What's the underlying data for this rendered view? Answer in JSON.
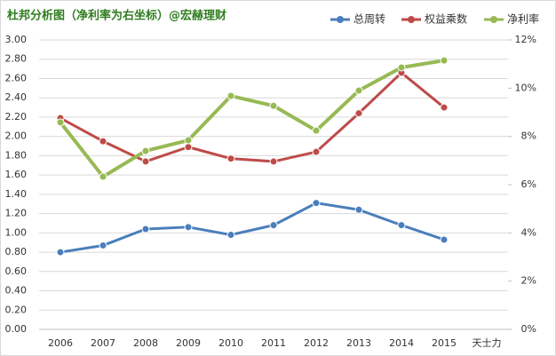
{
  "chart_data": {
    "type": "line",
    "title": "杜邦分析图（净利率为右坐标）@宏赫理财",
    "categories": [
      "2006",
      "2007",
      "2008",
      "2009",
      "2010",
      "2011",
      "2012",
      "2013",
      "2014",
      "2015",
      "天士力"
    ],
    "series": [
      {
        "name": "总周转",
        "color": "#4a7ebb",
        "values": [
          0.8,
          0.87,
          1.04,
          1.06,
          0.98,
          1.08,
          1.31,
          1.24,
          1.08,
          0.93,
          null
        ]
      },
      {
        "name": "权益乘数",
        "color": "#be4b48",
        "values": [
          2.19,
          1.95,
          1.74,
          1.89,
          1.77,
          1.74,
          1.84,
          2.24,
          2.66,
          2.3,
          null
        ]
      },
      {
        "name": "净利率",
        "color": "#98b954",
        "axis": "y2",
        "values": [
          8.58,
          6.33,
          7.4,
          7.84,
          9.68,
          9.27,
          8.24,
          9.9,
          10.86,
          11.15,
          null
        ]
      }
    ],
    "ylim": [
      0,
      3
    ],
    "yticks": [
      {
        "value": 0,
        "label": "0.00"
      },
      {
        "value": 0.2,
        "label": "0.20"
      },
      {
        "value": 0.4,
        "label": "0.40"
      },
      {
        "value": 0.6,
        "label": "0.60"
      },
      {
        "value": 0.8,
        "label": "0.80"
      },
      {
        "value": 1,
        "label": "1.00"
      },
      {
        "value": 1.2,
        "label": "1.20"
      },
      {
        "value": 1.4,
        "label": "1.40"
      },
      {
        "value": 1.6,
        "label": "1.60"
      },
      {
        "value": 1.8,
        "label": "1.80"
      },
      {
        "value": 2,
        "label": "2.00"
      },
      {
        "value": 2.2,
        "label": "2.20"
      },
      {
        "value": 2.4,
        "label": "2.40"
      },
      {
        "value": 2.6,
        "label": "2.60"
      },
      {
        "value": 2.8,
        "label": "2.80"
      },
      {
        "value": 3,
        "label": "3.00"
      }
    ],
    "y2lim": [
      0,
      12
    ],
    "y2ticks": [
      {
        "value": 0,
        "label": "0%"
      },
      {
        "value": 2,
        "label": "2%"
      },
      {
        "value": 4,
        "label": "4%"
      },
      {
        "value": 6,
        "label": "6%"
      },
      {
        "value": 8,
        "label": "8%"
      },
      {
        "value": 10,
        "label": "10%"
      },
      {
        "value": 12,
        "label": "12%"
      }
    ],
    "grid": true
  }
}
